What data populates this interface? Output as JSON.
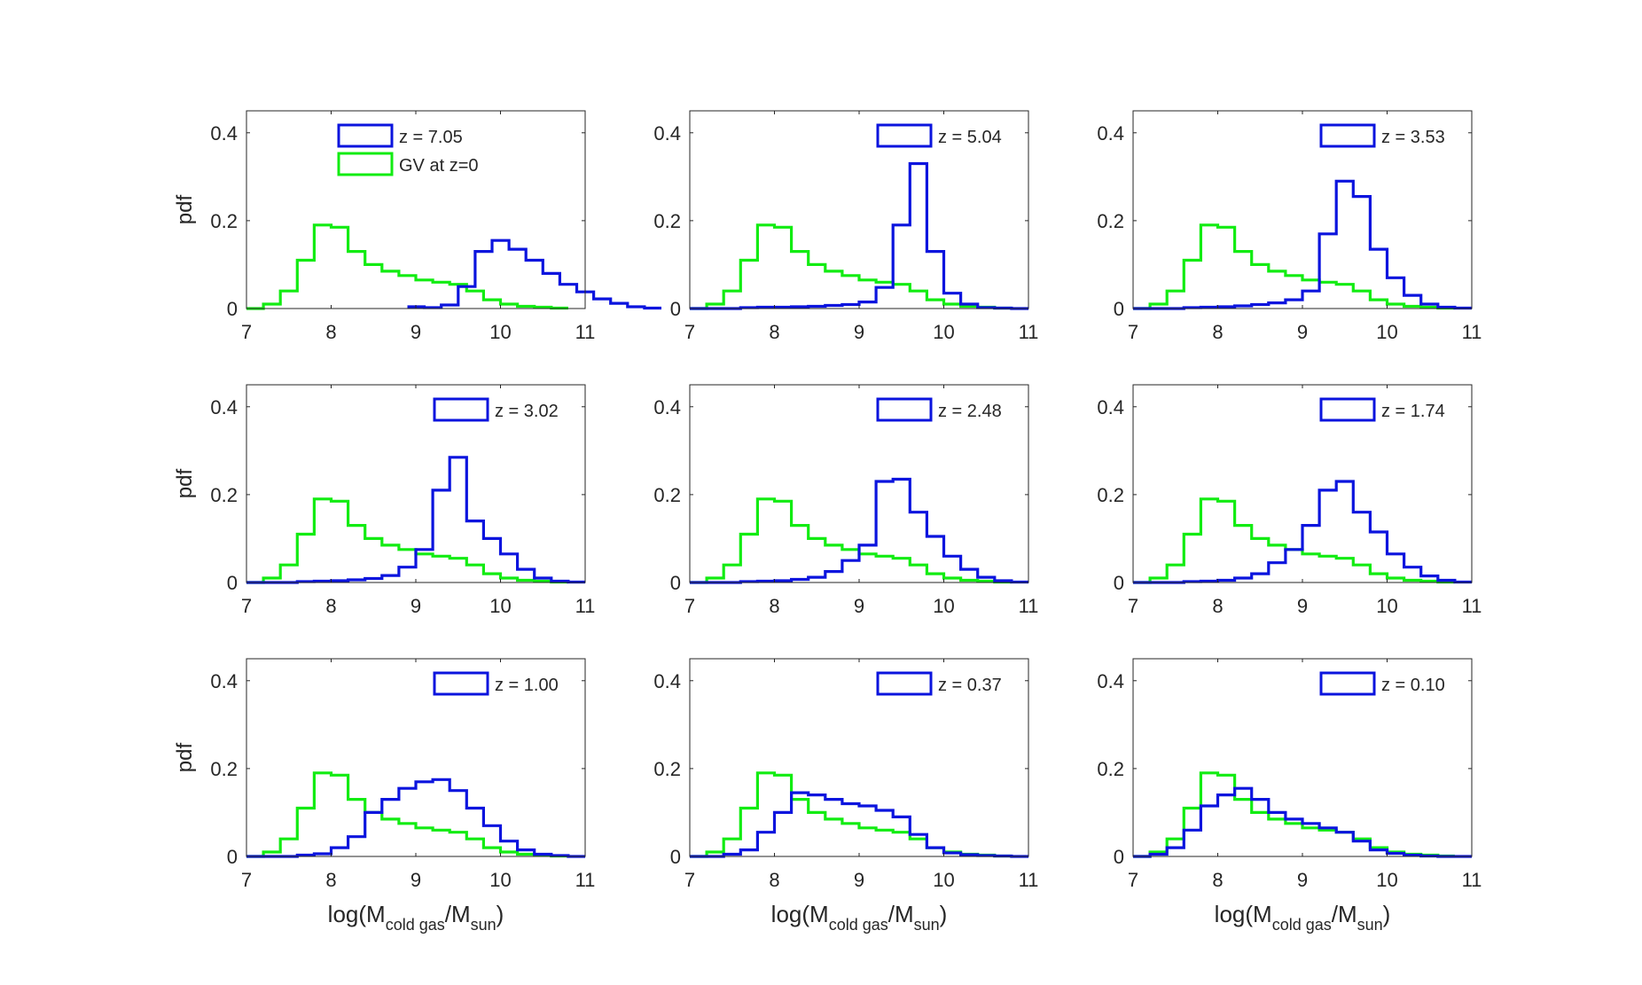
{
  "figure": {
    "xlabel_main": "log(M",
    "xlabel_sub": "cold gas",
    "xlabel_mid": "/M",
    "xlabel_sub2": "sun",
    "xlabel_end": ")",
    "ylabel": "pdf"
  },
  "chart_data": {
    "type": "histogram-grid",
    "x_ticks": [
      "7",
      "8",
      "9",
      "10",
      "11"
    ],
    "y_ticks": [
      "0",
      "0.2",
      "0.4"
    ],
    "xlim": [
      7,
      11
    ],
    "ylim": [
      0,
      0.45
    ],
    "bin_width": 0.2,
    "colors": {
      "blue": "#0b14de",
      "green": "#12ec12",
      "axes": "#262626"
    },
    "reference": {
      "name": "GV at z=0",
      "bin_start": 7.0,
      "values": [
        0,
        0.01,
        0.04,
        0.11,
        0.19,
        0.185,
        0.13,
        0.1,
        0.085,
        0.075,
        0.065,
        0.06,
        0.055,
        0.04,
        0.02,
        0.01,
        0.005,
        0.003,
        0.001
      ]
    },
    "panels": [
      {
        "legend": "z = 7.05",
        "show_reference_legend": true,
        "bin_start": 8.9,
        "values": [
          0.004,
          0.002,
          0.008,
          0.05,
          0.13,
          0.155,
          0.135,
          0.11,
          0.08,
          0.055,
          0.038,
          0.022,
          0.012,
          0.004,
          0.001
        ]
      },
      {
        "legend": "z = 5.04",
        "bin_start": 7.0,
        "values": [
          0,
          0,
          0,
          0.002,
          0.003,
          0.003,
          0.004,
          0.005,
          0.007,
          0.009,
          0.015,
          0.048,
          0.19,
          0.33,
          0.13,
          0.035,
          0.01,
          0.002,
          0.001,
          0
        ]
      },
      {
        "legend": "z = 3.53",
        "bin_start": 7.0,
        "values": [
          0,
          0,
          0,
          0.002,
          0.003,
          0.004,
          0.006,
          0.009,
          0.013,
          0.02,
          0.04,
          0.17,
          0.29,
          0.255,
          0.135,
          0.07,
          0.03,
          0.01,
          0.003,
          0.001
        ]
      },
      {
        "legend": "z = 3.02",
        "bin_start": 7.0,
        "values": [
          0,
          0,
          0,
          0.002,
          0.003,
          0.004,
          0.006,
          0.009,
          0.016,
          0.035,
          0.075,
          0.21,
          0.285,
          0.14,
          0.1,
          0.065,
          0.03,
          0.01,
          0.003,
          0.001
        ]
      },
      {
        "legend": "z = 2.48",
        "bin_start": 7.0,
        "values": [
          0,
          0,
          0,
          0.002,
          0.003,
          0.004,
          0.007,
          0.012,
          0.025,
          0.05,
          0.085,
          0.23,
          0.235,
          0.16,
          0.105,
          0.06,
          0.03,
          0.012,
          0.004,
          0.001
        ]
      },
      {
        "legend": "z = 1.74",
        "bin_start": 7.0,
        "values": [
          0,
          0,
          0,
          0.002,
          0.003,
          0.005,
          0.01,
          0.02,
          0.045,
          0.075,
          0.13,
          0.21,
          0.23,
          0.16,
          0.115,
          0.065,
          0.035,
          0.015,
          0.005,
          0.001
        ]
      },
      {
        "legend": "z = 1.00",
        "bin_start": 7.0,
        "values": [
          0,
          0,
          0,
          0.003,
          0.006,
          0.02,
          0.045,
          0.1,
          0.13,
          0.155,
          0.17,
          0.175,
          0.15,
          0.11,
          0.07,
          0.035,
          0.015,
          0.005,
          0.002,
          0
        ]
      },
      {
        "legend": "z = 0.37",
        "bin_start": 7.0,
        "values": [
          0,
          0,
          0.005,
          0.015,
          0.055,
          0.1,
          0.145,
          0.14,
          0.13,
          0.12,
          0.115,
          0.105,
          0.09,
          0.05,
          0.02,
          0.008,
          0.004,
          0.002,
          0.001,
          0
        ]
      },
      {
        "legend": "z = 0.10",
        "bin_start": 7.0,
        "values": [
          0,
          0.005,
          0.02,
          0.06,
          0.115,
          0.14,
          0.155,
          0.13,
          0.1,
          0.085,
          0.075,
          0.065,
          0.055,
          0.035,
          0.015,
          0.007,
          0.003,
          0.001,
          0,
          0
        ]
      }
    ]
  }
}
